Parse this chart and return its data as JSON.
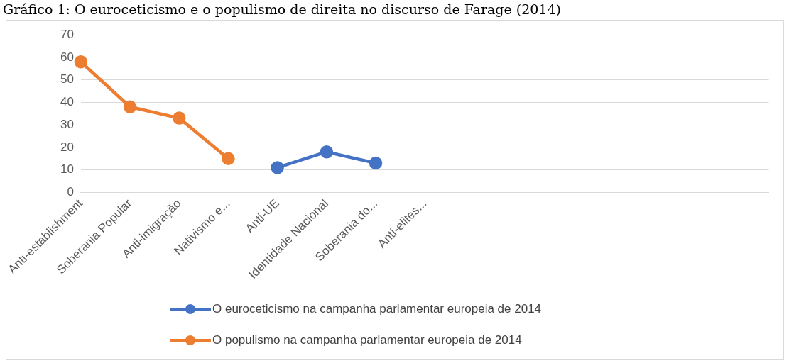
{
  "chart_data": {
    "type": "line",
    "title": "Gráfico 1: O euroceticismo e o populismo de direita no discurso de Farage (2014)",
    "categories": [
      "Anti-establishment",
      "Soberania Popular",
      "Anti-imigração",
      "Nativismo e...",
      "Anti-UE",
      "Identidade Nacional",
      "Soberania do...",
      "Anti-elites...",
      null,
      null,
      null,
      null,
      null,
      null,
      null
    ],
    "series": [
      {
        "name": "O euroceticismo na campanha parlamentar europeia de 2014",
        "color": "#4472c4",
        "values": [
          null,
          null,
          null,
          null,
          11,
          18,
          13,
          null,
          null,
          null,
          null,
          null,
          null,
          null,
          null
        ]
      },
      {
        "name": "O populismo na campanha parlamentar europeia de 2014",
        "color": "#ed7d31",
        "values": [
          58,
          38,
          33,
          15,
          null,
          null,
          null,
          null,
          null,
          null,
          null,
          null,
          null,
          null,
          null
        ]
      }
    ],
    "ylim": [
      0,
      70
    ],
    "yticks": [
      0,
      10,
      20,
      30,
      40,
      50,
      60,
      70
    ],
    "grid": "y",
    "legend": "bottom",
    "marker": "circle",
    "line_style": "solid"
  }
}
